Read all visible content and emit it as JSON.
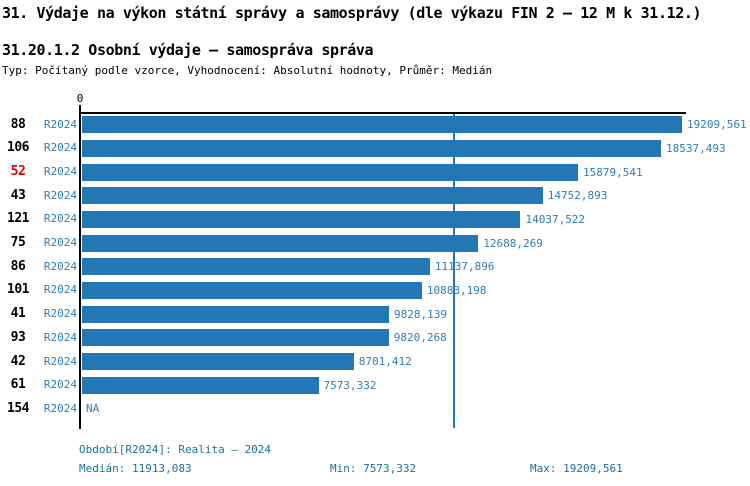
{
  "header": {
    "title": "31. Výdaje na výkon státní správy a samosprávy (dle výkazu FIN 2 – 12 M k 31.12.)",
    "subtitle": "31.20.1.2 Osobní výdaje – samospráva správa",
    "type_line": "Typ: Počítaný podle vzorce, Vyhodnocení: Absolutní hodnoty, Průměr: Medián"
  },
  "chart_data": {
    "type": "bar",
    "orientation": "horizontal",
    "title": "31.20.1.2 Osobní výdaje – samospráva správa",
    "xlabel": "",
    "ylabel": "",
    "xlim": [
      0,
      19209.561
    ],
    "x_axis_tick_label": "0",
    "axis_position": "top",
    "grid": false,
    "legend": false,
    "bar_color": "#2277b4",
    "median_line_color": "#2276b4",
    "highlight_color": "#e60000",
    "median": {
      "value": 11913.083
    },
    "rows": [
      {
        "id": "88",
        "period": "R2024",
        "value": 19209.561,
        "value_label": "19209,561",
        "highlight": false
      },
      {
        "id": "106",
        "period": "R2024",
        "value": 18537.493,
        "value_label": "18537,493",
        "highlight": false
      },
      {
        "id": "52",
        "period": "R2024",
        "value": 15879.541,
        "value_label": "15879,541",
        "highlight": true
      },
      {
        "id": "43",
        "period": "R2024",
        "value": 14752.893,
        "value_label": "14752,893",
        "highlight": false
      },
      {
        "id": "121",
        "period": "R2024",
        "value": 14037.522,
        "value_label": "14037,522",
        "highlight": false
      },
      {
        "id": "75",
        "period": "R2024",
        "value": 12688.269,
        "value_label": "12688,269",
        "highlight": false
      },
      {
        "id": "86",
        "period": "R2024",
        "value": 11137.896,
        "value_label": "11137,896",
        "highlight": false
      },
      {
        "id": "101",
        "period": "R2024",
        "value": 10883.198,
        "value_label": "10883,198",
        "highlight": false
      },
      {
        "id": "41",
        "period": "R2024",
        "value": 9828.139,
        "value_label": "9828,139",
        "highlight": false
      },
      {
        "id": "93",
        "period": "R2024",
        "value": 9820.268,
        "value_label": "9820,268",
        "highlight": false
      },
      {
        "id": "42",
        "period": "R2024",
        "value": 8701.412,
        "value_label": "8701,412",
        "highlight": false
      },
      {
        "id": "61",
        "period": "R2024",
        "value": 7573.332,
        "value_label": "7573,332",
        "highlight": false
      },
      {
        "id": "154",
        "period": "R2024",
        "value": null,
        "value_label": "NA",
        "highlight": false
      }
    ]
  },
  "footer": {
    "period_line": "Období[R2024]: Realita – 2024",
    "median_label": "Medián: 11913,083",
    "min_label": "Min: 7573,332",
    "max_label": "Max: 19209,561"
  }
}
